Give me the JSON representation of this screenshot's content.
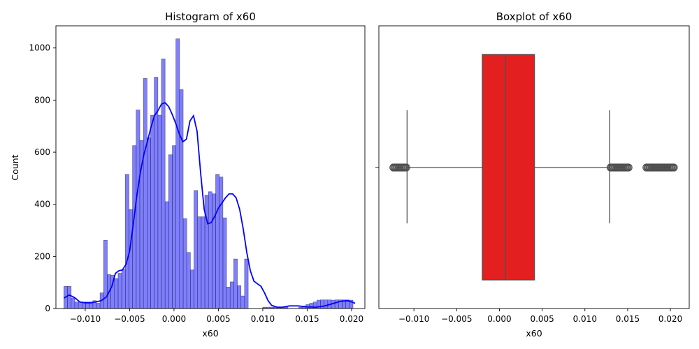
{
  "chart_data": [
    {
      "type": "bar",
      "subtype": "histogram",
      "title": "Histogram of x60",
      "xlabel": "x60",
      "ylabel": "Count",
      "xlim": [
        -0.0133,
        0.0215
      ],
      "ylim": [
        0,
        1085
      ],
      "xticks": [
        -0.01,
        -0.005,
        0.0,
        0.005,
        0.01,
        0.015,
        0.02
      ],
      "xtick_labels": [
        "−0.010",
        "−0.005",
        "0.000",
        "0.005",
        "0.010",
        "0.015",
        "0.020"
      ],
      "yticks": [
        0,
        200,
        400,
        600,
        800,
        1000
      ],
      "ytick_labels": [
        "0",
        "200",
        "400",
        "600",
        "800",
        "1000"
      ],
      "bar_color": "#0000ff",
      "bar_alpha": 0.5,
      "kde_color": "#0000ff",
      "grid": false,
      "bins": {
        "start": -0.0124,
        "width": 0.000407,
        "counts": [
          85,
          85,
          40,
          25,
          25,
          25,
          25,
          25,
          30,
          20,
          60,
          262,
          130,
          128,
          115,
          135,
          150,
          515,
          380,
          625,
          762,
          645,
          883,
          655,
          742,
          888,
          742,
          958,
          410,
          590,
          625,
          1035,
          840,
          345,
          215,
          148,
          453,
          352,
          352,
          435,
          448,
          440,
          515,
          505,
          348,
          82,
          102,
          190,
          88,
          48,
          190,
          0,
          0,
          0,
          0,
          5,
          5,
          5,
          5,
          5,
          5,
          5,
          0,
          0,
          0,
          5,
          10,
          15,
          20,
          25,
          32,
          33,
          33,
          33,
          32,
          33,
          33,
          33,
          33,
          32
        ]
      },
      "kde": {
        "x": [
          -0.0124,
          -0.0118,
          -0.0112,
          -0.0106,
          -0.01,
          -0.0094,
          -0.0088,
          -0.0082,
          -0.0076,
          -0.007,
          -0.0066,
          -0.0062,
          -0.0058,
          -0.0054,
          -0.005,
          -0.0046,
          -0.0042,
          -0.0038,
          -0.0034,
          -0.003,
          -0.0026,
          -0.0022,
          -0.0018,
          -0.0014,
          -0.001,
          -0.0006,
          -0.0002,
          0.0002,
          0.0006,
          0.001,
          0.0014,
          0.0018,
          0.0022,
          0.0026,
          0.003,
          0.0034,
          0.0038,
          0.0042,
          0.0046,
          0.005,
          0.0054,
          0.0058,
          0.0062,
          0.0066,
          0.007,
          0.0074,
          0.0078,
          0.0082,
          0.0086,
          0.009,
          0.0094,
          0.0098,
          0.0102,
          0.0106,
          0.011,
          0.0116,
          0.0122,
          0.013,
          0.014,
          0.015,
          0.016,
          0.017,
          0.018,
          0.0188,
          0.0196,
          0.0204
        ],
        "y": [
          40,
          52,
          42,
          25,
          22,
          22,
          25,
          30,
          45,
          85,
          135,
          145,
          148,
          170,
          220,
          320,
          430,
          520,
          590,
          640,
          695,
          740,
          760,
          785,
          790,
          775,
          745,
          710,
          670,
          640,
          650,
          720,
          740,
          680,
          520,
          380,
          325,
          330,
          355,
          385,
          405,
          425,
          440,
          440,
          425,
          380,
          305,
          215,
          145,
          105,
          95,
          85,
          60,
          30,
          12,
          5,
          5,
          10,
          10,
          6,
          5,
          10,
          20,
          28,
          30,
          20
        ]
      }
    },
    {
      "type": "boxplot",
      "title": "Boxplot of x60",
      "xlabel": "x60",
      "ylabel": "",
      "xlim": [
        -0.0141,
        0.0222
      ],
      "xticks": [
        -0.01,
        -0.005,
        0.0,
        0.005,
        0.01,
        0.015,
        0.02
      ],
      "xtick_labels": [
        "−0.010",
        "−0.005",
        "0.000",
        "0.005",
        "0.010",
        "0.015",
        "0.020"
      ],
      "ytick_labels": [
        ""
      ],
      "box_color": "#e41f1f",
      "line_color": "#4f4f4f",
      "grid": false,
      "stats": {
        "whisker_low": -0.0108,
        "q1": -0.002,
        "median": 0.0007,
        "q3": 0.0041,
        "whisker_high": 0.0129
      },
      "outliers_low_range": [
        -0.0124,
        -0.0109
      ],
      "outliers_high_ranges": [
        [
          0.013,
          0.0151
        ],
        [
          0.0172,
          0.0204
        ]
      ]
    }
  ]
}
